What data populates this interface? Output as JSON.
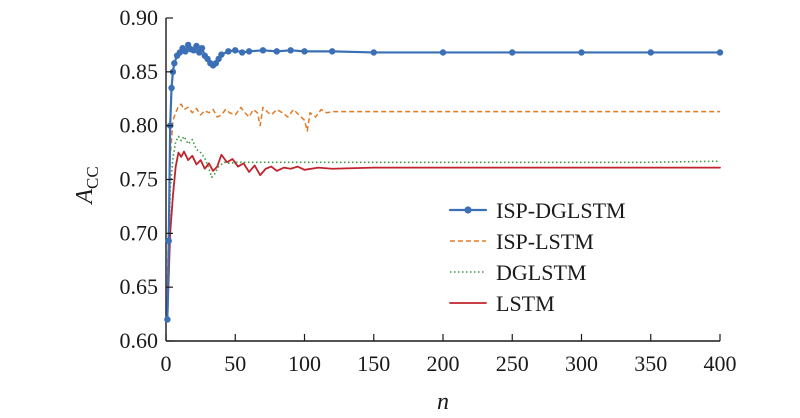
{
  "chart_data": {
    "type": "line",
    "title": "",
    "xlabel": "n",
    "ylabel_main": "A",
    "ylabel_sub": "CC",
    "xlim": [
      0,
      400
    ],
    "ylim": [
      0.6,
      0.9
    ],
    "xticks": [
      "0",
      "50",
      "100",
      "150",
      "200",
      "250",
      "300",
      "350",
      "400"
    ],
    "yticks": [
      "0.60",
      "0.65",
      "0.70",
      "0.75",
      "0.80",
      "0.85",
      "0.90"
    ],
    "grid": false,
    "legend_position": "center-right",
    "series": [
      {
        "name": "ISP-DGLSTM",
        "color": "#3b6fb6",
        "style": "solid-markers",
        "x": [
          1,
          2,
          3,
          4,
          5,
          6,
          8,
          10,
          12,
          14,
          16,
          18,
          20,
          22,
          24,
          26,
          28,
          30,
          32,
          34,
          36,
          38,
          40,
          45,
          50,
          55,
          60,
          70,
          80,
          90,
          100,
          120,
          150,
          200,
          250,
          300,
          350,
          400
        ],
        "y": [
          0.62,
          0.693,
          0.8,
          0.835,
          0.85,
          0.858,
          0.865,
          0.868,
          0.872,
          0.869,
          0.875,
          0.871,
          0.87,
          0.874,
          0.868,
          0.872,
          0.865,
          0.862,
          0.858,
          0.856,
          0.858,
          0.862,
          0.866,
          0.869,
          0.87,
          0.868,
          0.869,
          0.87,
          0.869,
          0.87,
          0.869,
          0.869,
          0.868,
          0.868,
          0.868,
          0.868,
          0.868,
          0.868
        ]
      },
      {
        "name": "ISP-LSTM",
        "color": "#e07b28",
        "style": "dashed",
        "x": [
          1,
          3,
          5,
          7,
          9,
          11,
          13,
          16,
          19,
          22,
          25,
          28,
          31,
          34,
          37,
          40,
          43,
          46,
          50,
          54,
          57,
          60,
          63,
          66,
          68,
          70,
          73,
          76,
          80,
          84,
          88,
          92,
          96,
          100,
          102,
          104,
          108,
          112,
          116,
          120,
          150,
          200,
          250,
          300,
          350,
          400
        ],
        "y": [
          0.65,
          0.77,
          0.805,
          0.812,
          0.818,
          0.82,
          0.815,
          0.817,
          0.812,
          0.816,
          0.81,
          0.814,
          0.812,
          0.815,
          0.808,
          0.81,
          0.815,
          0.812,
          0.81,
          0.817,
          0.812,
          0.808,
          0.815,
          0.812,
          0.8,
          0.817,
          0.813,
          0.81,
          0.815,
          0.812,
          0.808,
          0.815,
          0.81,
          0.805,
          0.795,
          0.812,
          0.808,
          0.815,
          0.812,
          0.813,
          0.813,
          0.813,
          0.813,
          0.813,
          0.813,
          0.813
        ]
      },
      {
        "name": "DGLSTM",
        "color": "#3d9a3d",
        "style": "dotted",
        "x": [
          1,
          3,
          5,
          7,
          9,
          11,
          13,
          16,
          19,
          22,
          25,
          28,
          31,
          33,
          35,
          38,
          42,
          46,
          50,
          55,
          60,
          70,
          80,
          90,
          100,
          150,
          200,
          250,
          300,
          350,
          400
        ],
        "y": [
          0.62,
          0.74,
          0.77,
          0.785,
          0.79,
          0.786,
          0.79,
          0.783,
          0.787,
          0.778,
          0.775,
          0.77,
          0.76,
          0.752,
          0.755,
          0.762,
          0.766,
          0.765,
          0.766,
          0.766,
          0.766,
          0.766,
          0.766,
          0.766,
          0.766,
          0.766,
          0.766,
          0.766,
          0.766,
          0.766,
          0.767
        ]
      },
      {
        "name": "LSTM",
        "color": "#c0242c",
        "style": "solid",
        "x": [
          1,
          3,
          5,
          7,
          9,
          11,
          13,
          16,
          19,
          22,
          25,
          28,
          31,
          34,
          37,
          40,
          44,
          48,
          52,
          56,
          60,
          64,
          68,
          72,
          76,
          80,
          85,
          90,
          95,
          100,
          110,
          120,
          150,
          200,
          250,
          300,
          350,
          400
        ],
        "y": [
          0.62,
          0.7,
          0.735,
          0.762,
          0.775,
          0.771,
          0.776,
          0.768,
          0.772,
          0.764,
          0.768,
          0.76,
          0.765,
          0.758,
          0.762,
          0.773,
          0.766,
          0.769,
          0.762,
          0.765,
          0.757,
          0.763,
          0.754,
          0.76,
          0.762,
          0.758,
          0.761,
          0.76,
          0.762,
          0.759,
          0.761,
          0.76,
          0.761,
          0.761,
          0.761,
          0.761,
          0.761,
          0.761
        ]
      }
    ]
  }
}
